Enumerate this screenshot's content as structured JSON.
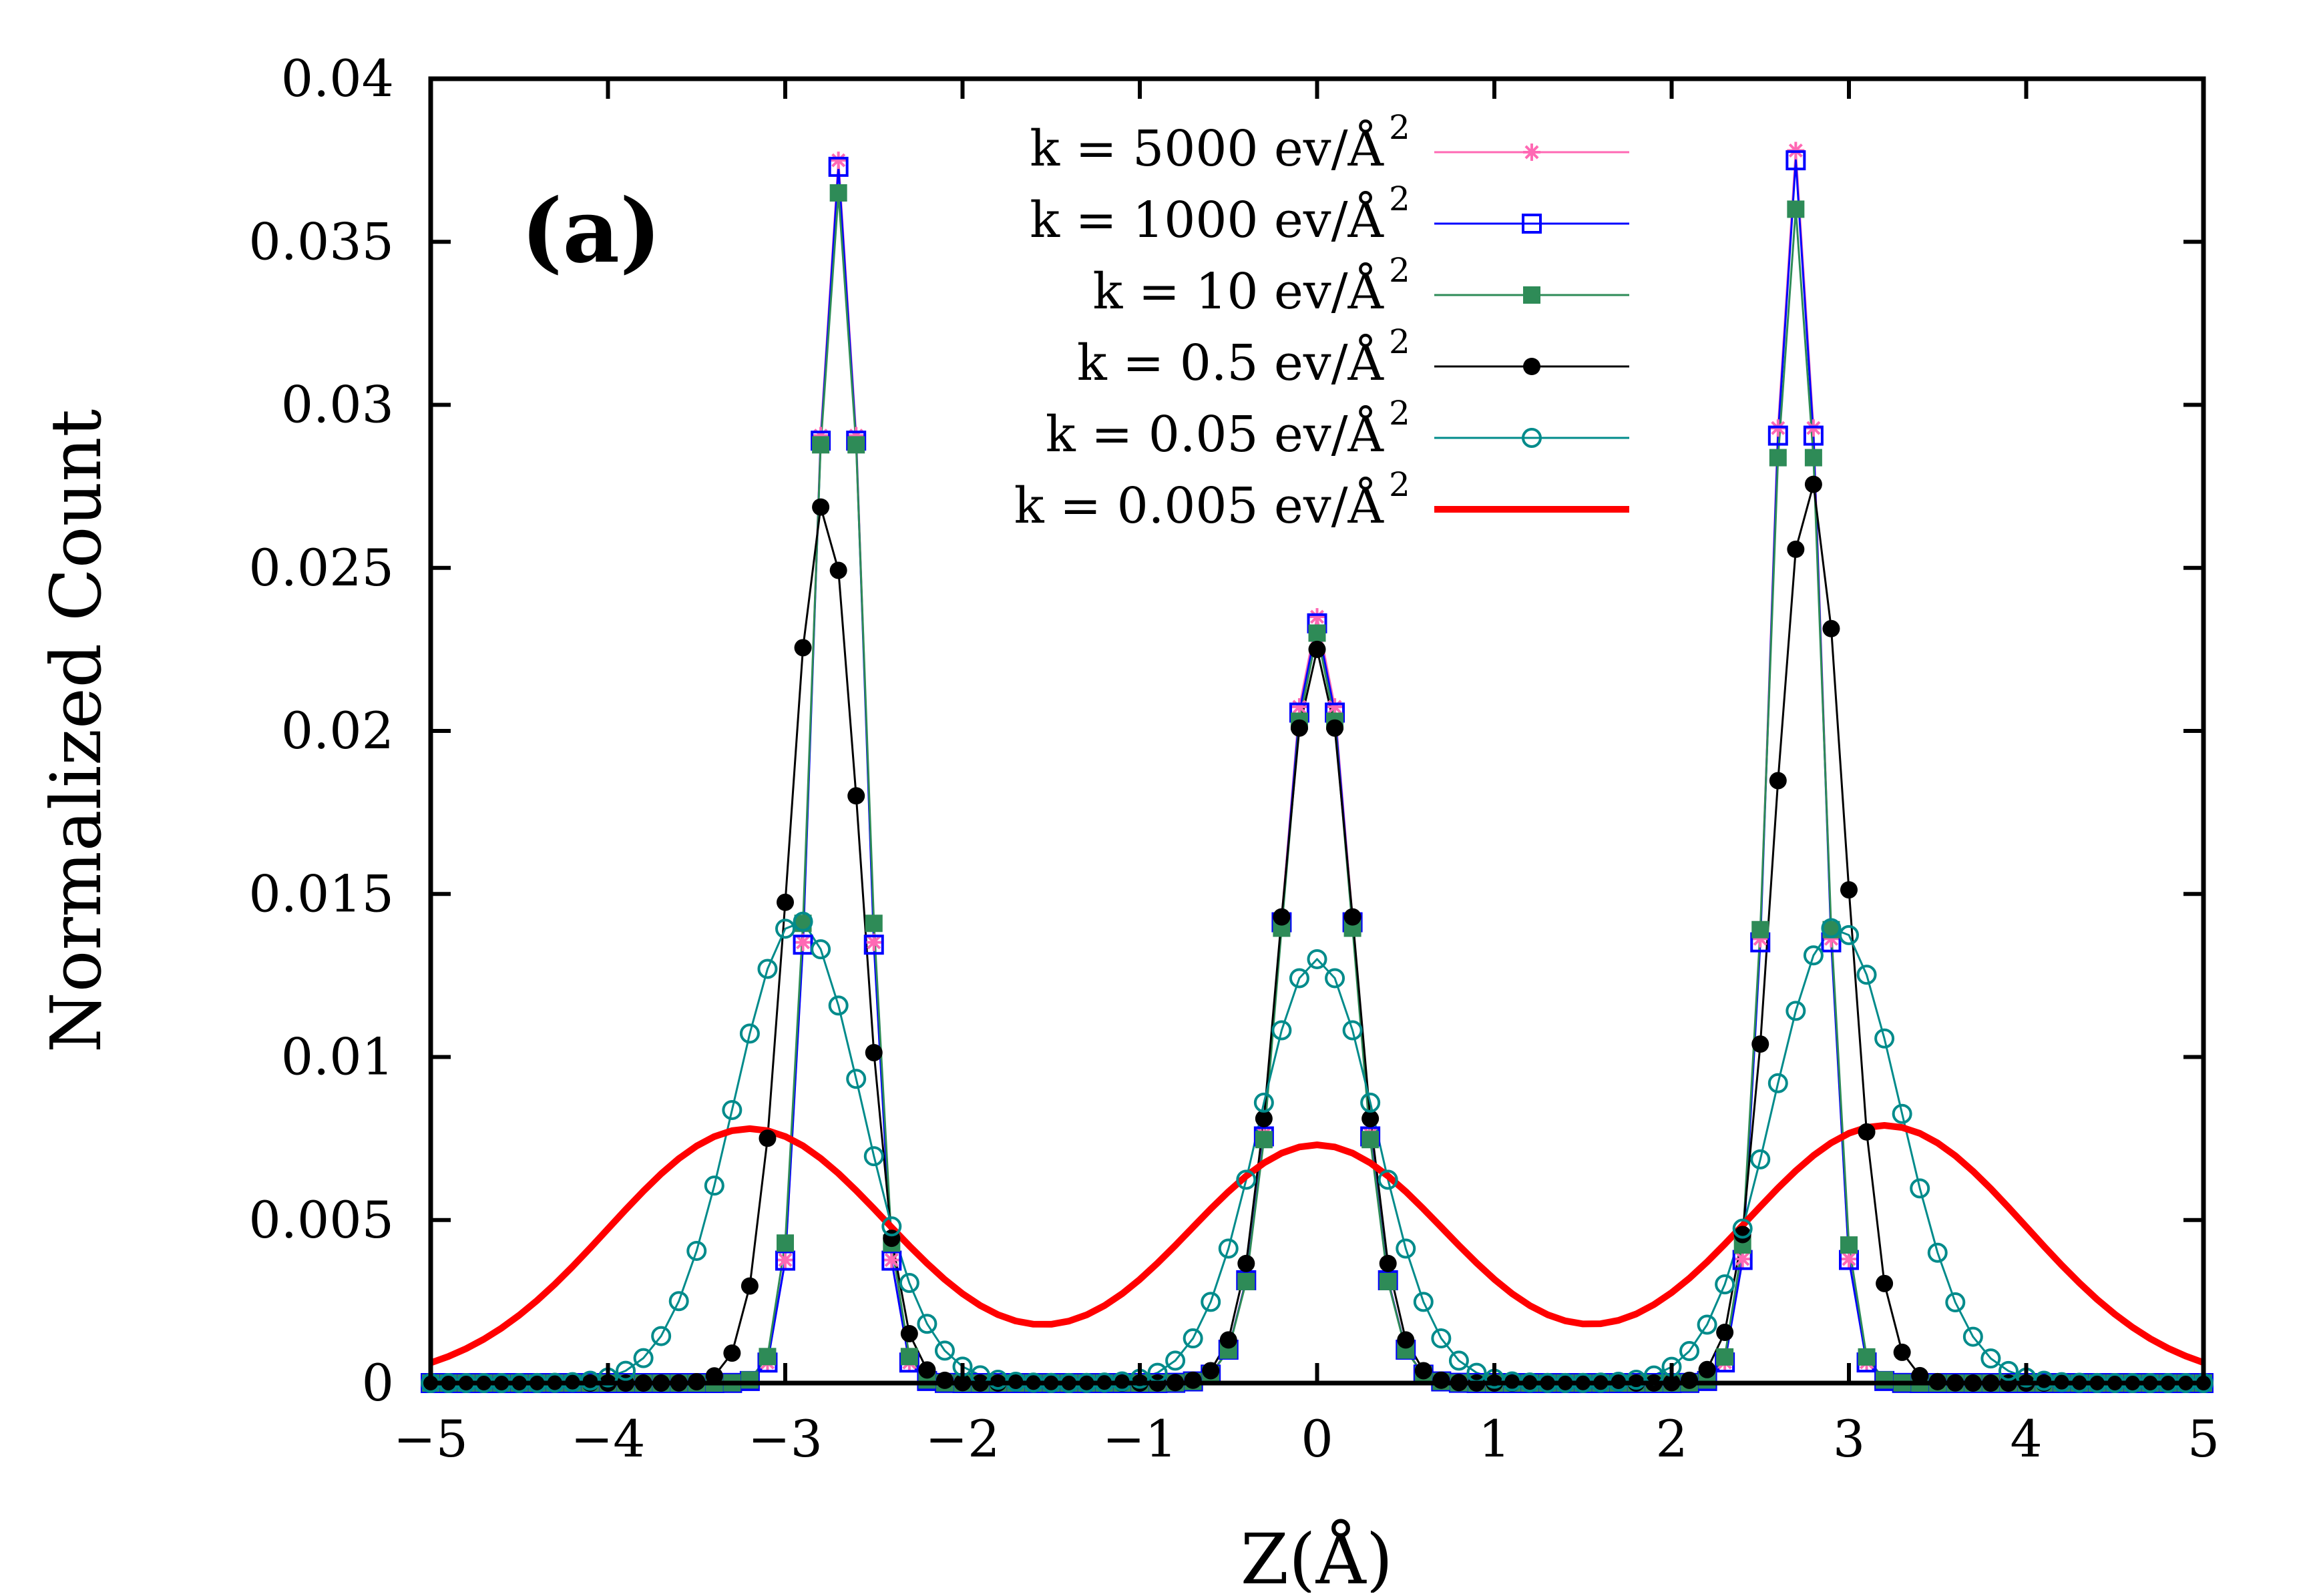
{
  "chart_data": {
    "type": "line",
    "panel_label": "(a)",
    "xlabel": "Z(Å)",
    "ylabel": "Normalized Count",
    "xlim": [
      -5,
      5
    ],
    "ylim": [
      0,
      0.04
    ],
    "xticks": [
      -5,
      -4,
      -3,
      -2,
      -1,
      0,
      1,
      2,
      3,
      4,
      5
    ],
    "xtick_labels": [
      "−5",
      "−4",
      "−3",
      "−2",
      "−1",
      "0",
      "1",
      "2",
      "3",
      "4",
      "5"
    ],
    "yticks": [
      0,
      0.005,
      0.01,
      0.015,
      0.02,
      0.025,
      0.03,
      0.035,
      0.04
    ],
    "ytick_labels": [
      "0",
      "0.005",
      "0.01",
      "0.015",
      "0.02",
      "0.025",
      "0.03",
      "0.035",
      "0.04"
    ],
    "grid": false,
    "legend_position": "top-center",
    "sampling": {
      "x_start": -5,
      "x_end": 5,
      "step": 0.1
    },
    "series": [
      {
        "label_main": "k = 5000 ev/Å",
        "label_sup": "2",
        "color": "#ff69b4",
        "marker": "star",
        "width": 3,
        "peaks": [
          {
            "mu": -2.7,
            "sigma": 0.14,
            "amp": 0.0375
          },
          {
            "mu": 0.0,
            "sigma": 0.2,
            "amp": 0.0235
          },
          {
            "mu": 2.7,
            "sigma": 0.14,
            "amp": 0.0378
          }
        ],
        "baseline": 0
      },
      {
        "label_main": "k = 1000 ev/Å",
        "label_sup": "2",
        "color": "#0000ff",
        "marker": "open-square",
        "width": 3,
        "peaks": [
          {
            "mu": -2.7,
            "sigma": 0.14,
            "amp": 0.0373
          },
          {
            "mu": 0.0,
            "sigma": 0.2,
            "amp": 0.0233
          },
          {
            "mu": 2.7,
            "sigma": 0.14,
            "amp": 0.0375
          }
        ],
        "baseline": 0
      },
      {
        "label_main": "k = 10 ev/Å",
        "label_sup": "2",
        "color": "#2e8b57",
        "marker": "filled-square",
        "width": 3,
        "peaks": [
          {
            "mu": -2.7,
            "sigma": 0.145,
            "amp": 0.0365
          },
          {
            "mu": 0.0,
            "sigma": 0.2,
            "amp": 0.023
          },
          {
            "mu": 2.7,
            "sigma": 0.145,
            "amp": 0.036
          }
        ],
        "baseline": 0
      },
      {
        "label_main": "k = 0.5 ev/Å",
        "label_sup": "2",
        "color": "#000000",
        "marker": "filled-circle",
        "width": 3,
        "peaks": [
          {
            "mu": -2.78,
            "sigma": 0.2,
            "amp": 0.027
          },
          {
            "mu": 0.0,
            "sigma": 0.21,
            "amp": 0.0225
          },
          {
            "mu": 2.78,
            "sigma": 0.2,
            "amp": 0.0277
          }
        ],
        "baseline": 0
      },
      {
        "label_main": "k = 0.05 ev/Å",
        "label_sup": "2",
        "color": "#008b8b",
        "marker": "open-circle",
        "width": 3,
        "peaks": [
          {
            "mu": -2.93,
            "sigma": 0.36,
            "amp": 0.0142
          },
          {
            "mu": 0.0,
            "sigma": 0.33,
            "amp": 0.013
          },
          {
            "mu": 2.93,
            "sigma": 0.36,
            "amp": 0.014
          }
        ],
        "baseline": 0
      },
      {
        "label_main": "k = 0.005 ev/Å",
        "label_sup": "2",
        "color": "#ff0000",
        "marker": "none",
        "width": 10,
        "peaks": [
          {
            "mu": -3.2,
            "sigma": 0.8,
            "amp": 0.0078
          },
          {
            "mu": 0.0,
            "sigma": 0.75,
            "amp": 0.0073
          },
          {
            "mu": 3.2,
            "sigma": 0.8,
            "amp": 0.0079
          }
        ],
        "baseline": 0.0
      }
    ]
  }
}
